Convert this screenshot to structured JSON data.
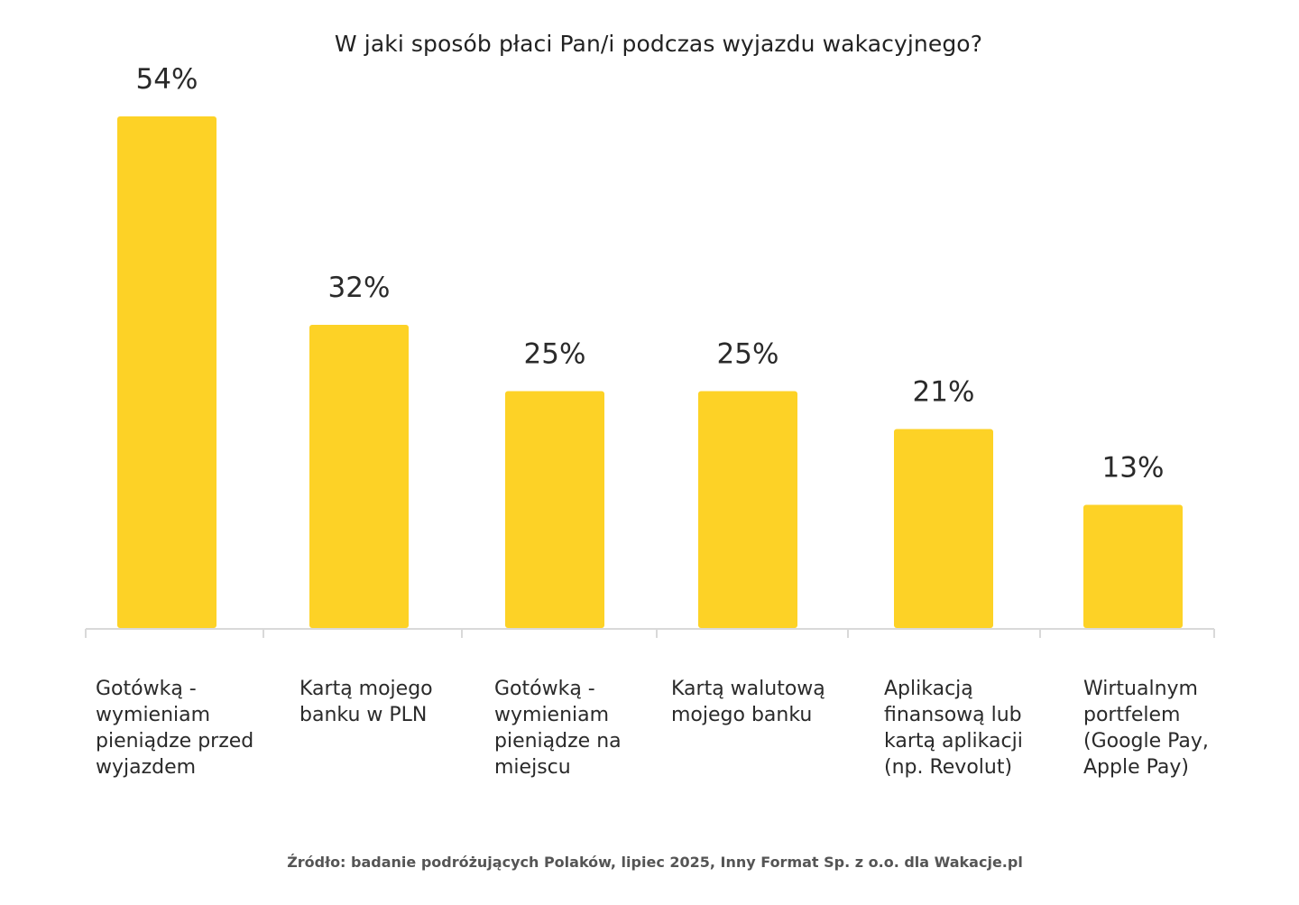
{
  "chart_data": {
    "type": "bar",
    "title": "W jaki sposób płaci Pan/i podczas wyjazdu wakacyjnego?",
    "categories": [
      "Gotówką - wymieniam pieniądze przed wyjazdem",
      "Kartą mojego banku w PLN",
      "Gotówką - wymieniam pieniądze na miejscu",
      "Kartą walutową mojego banku",
      "Aplikacją finansową lub kartą aplikacji (np. Revolut)",
      "Wirtualnym portfelem (Google Pay, Apple Pay)"
    ],
    "category_lines": [
      [
        "Gotówką -",
        "wymieniam",
        "pieniądze przed",
        "wyjazdem"
      ],
      [
        "Kartą mojego",
        "banku w PLN"
      ],
      [
        "Gotówką -",
        "wymieniam",
        "pieniądze na",
        "miejscu"
      ],
      [
        "Kartą walutową",
        "mojego banku"
      ],
      [
        "Aplikacją",
        "finansową lub",
        "kartą aplikacji",
        "(np. Revolut)"
      ],
      [
        "Wirtualnym",
        "portfelem",
        "(Google Pay,",
        "Apple Pay)"
      ]
    ],
    "values": [
      54,
      32,
      25,
      25,
      21,
      13
    ],
    "value_labels": [
      "54%",
      "32%",
      "25%",
      "25%",
      "21%",
      "13%"
    ],
    "ylim": [
      0,
      54
    ],
    "grid": false,
    "legend": "none",
    "bar_color": "#FDD226",
    "axis_color": "#d9d9d9"
  },
  "source": "Źródło: badanie podróżujących Polaków, lipiec 2025, Inny Format Sp. z o.o. dla Wakacje.pl"
}
